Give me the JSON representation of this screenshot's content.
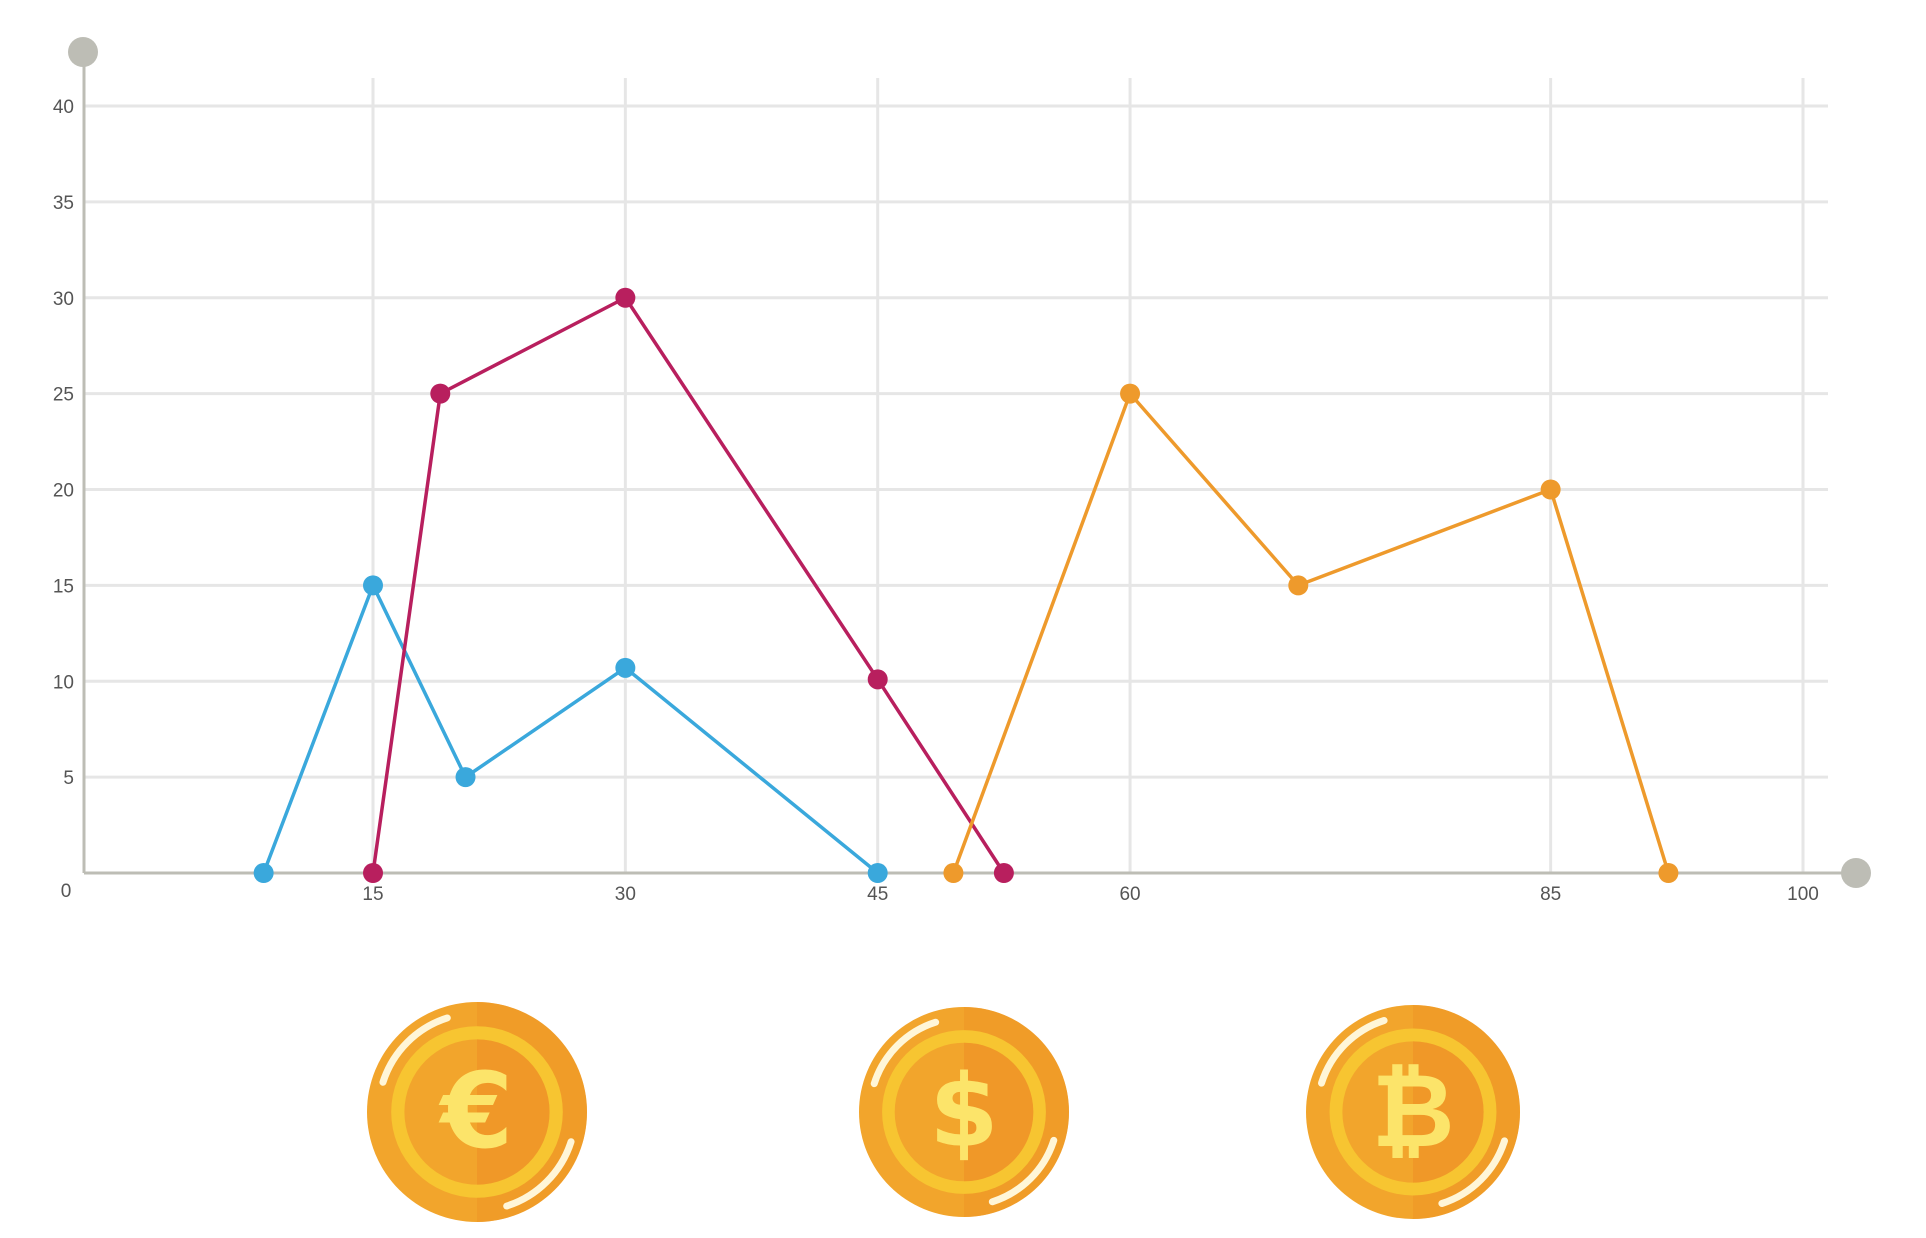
{
  "chart_data": {
    "type": "line",
    "title": "",
    "xlabel": "",
    "ylabel": "",
    "xlim": [
      0,
      105
    ],
    "ylim": [
      0,
      40
    ],
    "x_ticks": [
      15,
      30,
      45,
      60,
      85,
      100
    ],
    "x_tick_labels": [
      "15",
      "30",
      "45",
      "60",
      "85",
      "100"
    ],
    "y_ticks": [
      5,
      10,
      15,
      20,
      25,
      30,
      35,
      40
    ],
    "y_tick_labels": [
      "5",
      "10",
      "15",
      "20",
      "25",
      "30",
      "35",
      "40"
    ],
    "origin_label": "0",
    "grid": true,
    "series": [
      {
        "color": "#3AA8DC",
        "points": [
          [
            8.5,
            0
          ],
          [
            15,
            15
          ],
          [
            20.5,
            5
          ],
          [
            30,
            10.7
          ],
          [
            45,
            0
          ]
        ]
      },
      {
        "color": "#B81F5E",
        "points": [
          [
            15,
            0
          ],
          [
            19,
            25
          ],
          [
            30,
            30
          ],
          [
            45,
            10.1
          ],
          [
            52.5,
            0
          ]
        ]
      },
      {
        "color": "#EE9A2C",
        "points": [
          [
            49.5,
            0
          ],
          [
            60,
            25
          ],
          [
            70,
            15
          ],
          [
            85,
            20
          ],
          [
            92,
            0
          ]
        ]
      }
    ]
  },
  "coins": [
    {
      "symbol": "€",
      "icon": "euro-coin-icon"
    },
    {
      "symbol": "$",
      "icon": "dollar-coin-icon"
    },
    {
      "symbol": "₿",
      "icon": "bitcoin-coin-icon"
    }
  ],
  "colors": {
    "grid": "#E6E6E6",
    "axis": "#BDBDB5",
    "coin_outer": "#F2A52C",
    "coin_inner": "#F7C531",
    "coin_symbol": "#FCE46A"
  }
}
